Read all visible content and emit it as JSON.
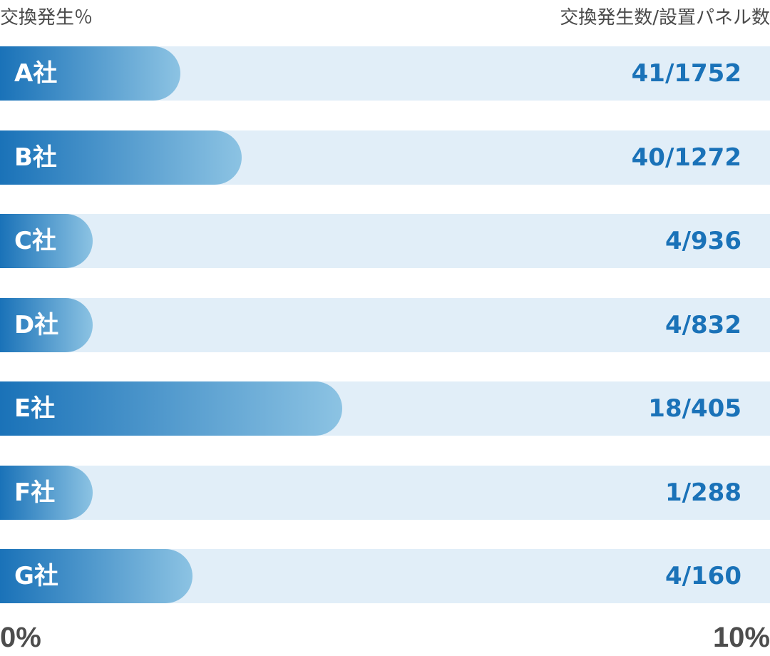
{
  "header": {
    "left_label": "交換発生％",
    "right_label": "交換発生数/設置パネル数"
  },
  "colors": {
    "track": "#e1eef8",
    "bar_start": "#1a72b8",
    "bar_end": "#8cc3e3",
    "ratio_text": "#1a72b8",
    "axis_text": "#4d4d4d"
  },
  "chart_data": {
    "type": "bar",
    "orientation": "horizontal",
    "categories": [
      "A社",
      "B社",
      "C社",
      "D社",
      "E社",
      "F社",
      "G社"
    ],
    "values": [
      2.34,
      3.14,
      0.43,
      0.48,
      4.44,
      0.35,
      2.5
    ],
    "ratios": [
      "41/1752",
      "40/1272",
      "4/936",
      "4/832",
      "18/405",
      "1/288",
      "4/160"
    ],
    "xlim": [
      0,
      10
    ],
    "axis_labels": {
      "min": "0%",
      "max": "10%"
    },
    "title": "",
    "xlabel": "交換発生％",
    "ylabel": "",
    "grid": false,
    "legend": "none"
  }
}
